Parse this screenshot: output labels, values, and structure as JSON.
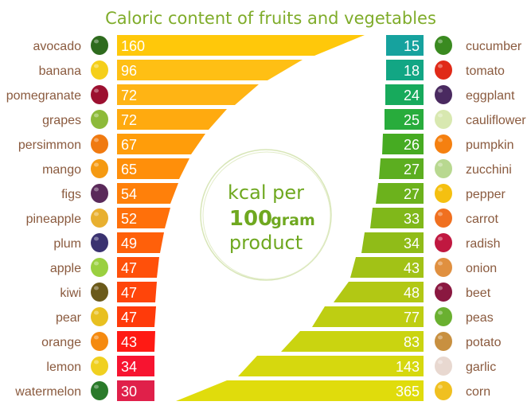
{
  "chart_data": {
    "type": "bar",
    "title": "Caloric content of fruits and vegetables",
    "center_text": [
      "kcal per",
      "100",
      "gram",
      "product"
    ],
    "series": [
      {
        "name": "fruits",
        "side": "left",
        "categories": [
          "avocado",
          "banana",
          "pomegranate",
          "grapes",
          "persimmon",
          "mango",
          "figs",
          "pineapple",
          "plum",
          "apple",
          "kiwi",
          "pear",
          "orange",
          "lemon",
          "watermelon"
        ],
        "values": [
          160,
          96,
          72,
          72,
          67,
          65,
          54,
          52,
          49,
          47,
          47,
          47,
          43,
          34,
          30
        ],
        "colors": [
          "#ffc80a",
          "#ffbf14",
          "#ffb414",
          "#ffaa0f",
          "#ff9d0a",
          "#ff8f0a",
          "#ff800a",
          "#ff700a",
          "#ff600a",
          "#ff500a",
          "#ff450a",
          "#ff3a0a",
          "#ff1a14",
          "#f71430",
          "#e0204a"
        ],
        "icon_colors": [
          "#2e6b1e",
          "#f5cf1a",
          "#9c1030",
          "#8dba3a",
          "#f07a10",
          "#f59a12",
          "#5a2a5a",
          "#e8b030",
          "#3a3270",
          "#9ad040",
          "#6b5a1a",
          "#e8c020",
          "#f58a10",
          "#f0d020",
          "#2a7a2a"
        ]
      },
      {
        "name": "vegetables",
        "side": "right",
        "categories": [
          "cucumber",
          "tomato",
          "eggplant",
          "cauliflower",
          "pumpkin",
          "zucchini",
          "pepper",
          "carrot",
          "radish",
          "onion",
          "beet",
          "peas",
          "potato",
          "garlic",
          "corn"
        ],
        "values": [
          15,
          18,
          24,
          25,
          26,
          27,
          27,
          33,
          34,
          43,
          48,
          77,
          83,
          143,
          365
        ],
        "colors": [
          "#16a29e",
          "#12a684",
          "#17aa5c",
          "#28ac3c",
          "#46ab22",
          "#5cae20",
          "#6cb21c",
          "#80b81a",
          "#90bc18",
          "#a2c216",
          "#b2c814",
          "#bece12",
          "#cad410",
          "#d6d80e",
          "#e0dc0c"
        ],
        "icon_colors": [
          "#3a8a20",
          "#e02a18",
          "#4a2a60",
          "#d8e8b0",
          "#f58010",
          "#b8d890",
          "#f5c010",
          "#f07020",
          "#c01840",
          "#e09040",
          "#8a1840",
          "#6ab030",
          "#c89040",
          "#e8d8d0",
          "#f0c020"
        ]
      }
    ]
  }
}
